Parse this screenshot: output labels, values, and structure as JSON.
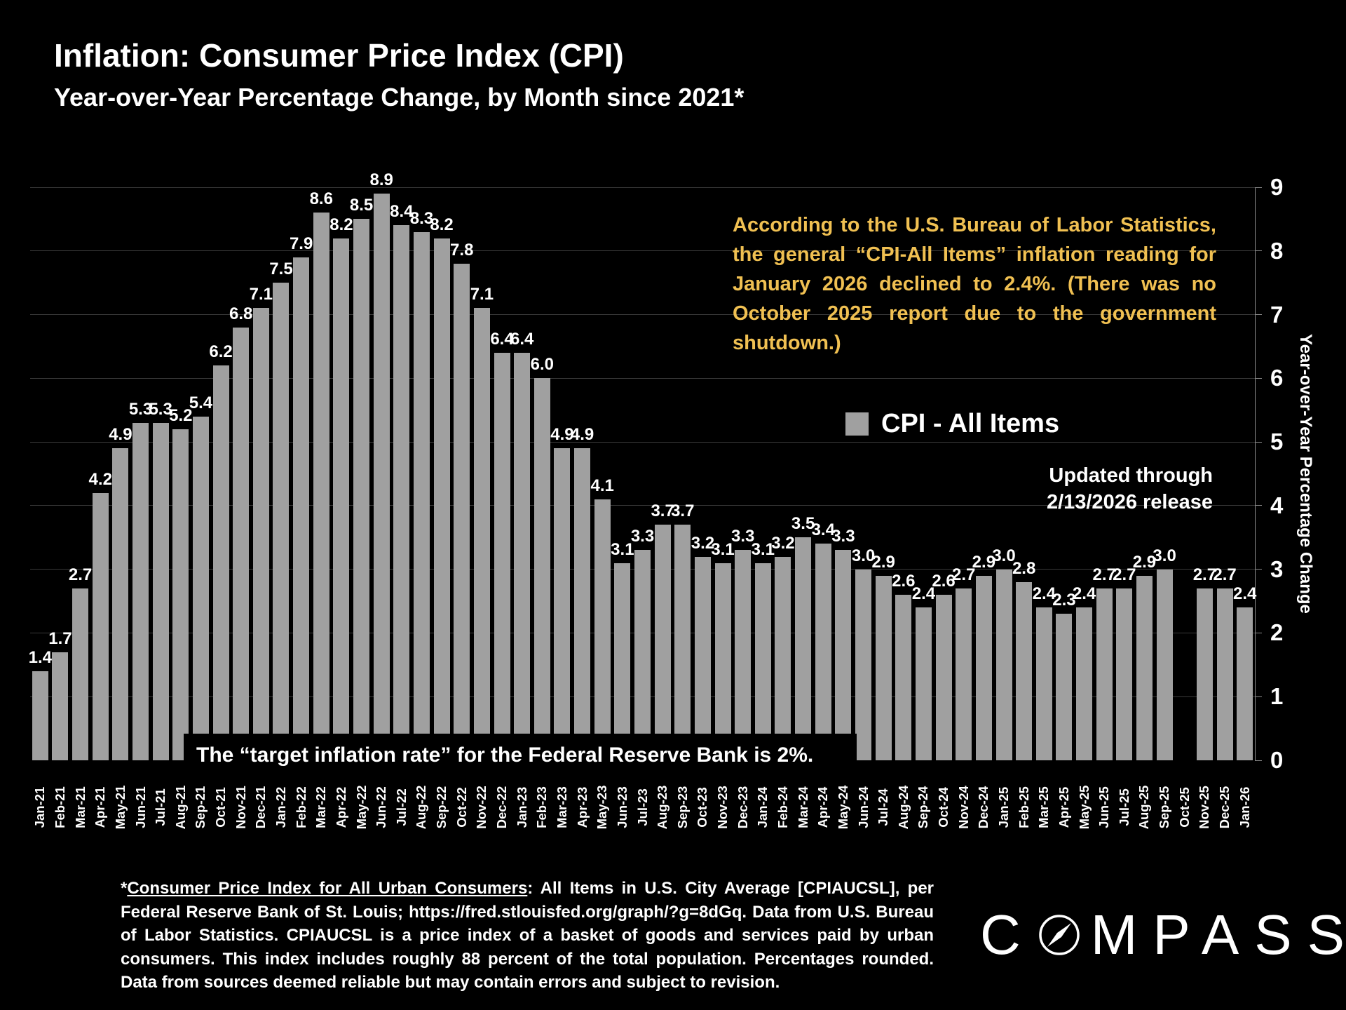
{
  "header": {
    "title": "Inflation: Consumer Price Index (CPI)",
    "subtitle": "Year-over-Year Percentage Change, by Month since 2021*"
  },
  "annotation": {
    "text": "According to the U.S. Bureau of Labor Statistics, the general “CPI-All Items” inflation reading for January 2026 declined to 2.4%. (There was no October 2025 report due to the government shutdown.)"
  },
  "legend": {
    "label": "CPI - All Items"
  },
  "updated": {
    "line1": "Updated through",
    "line2": "2/13/2026 release"
  },
  "target_note": {
    "text": "The “target inflation rate” for the Federal Reserve Bank is 2%."
  },
  "footnote": {
    "asterisk": "*",
    "underlined": "Consumer Price Index for All Urban Consumers",
    "rest": ": All Items in U.S. City Average [CPIAUCSL], per Federal Reserve Bank of St. Louis; https://fred.stlouisfed.org/graph/?g=8dGq. Data from U.S. Bureau of Labor Statistics. CPIAUCSL is a price index of a basket of goods and services paid by urban consumers. This index includes roughly 88 percent of the total population. Percentages rounded. Data from sources deemed reliable but may contain errors and subject to revision."
  },
  "logo": {
    "part1": "C",
    "part2": "MPASS"
  },
  "colors": {
    "background": "#000000",
    "bar": "#A0A0A0",
    "annotation": "#F0C052",
    "text": "#FFFFFF",
    "gridline": "#3A3A3A"
  },
  "chart_data": {
    "type": "bar",
    "title": "Inflation: Consumer Price Index (CPI)",
    "subtitle": "Year-over-Year Percentage Change, by Month since 2021*",
    "xlabel": "",
    "ylabel": "Year-over-Year Percentage Change",
    "ylim": [
      0,
      9
    ],
    "grid": true,
    "legend_position": "center-right",
    "series_name": "CPI - All Items",
    "note": "No bar for Oct-25 (no report due to government shutdown)",
    "categories": [
      "Jan-21",
      "Feb-21",
      "Mar-21",
      "Apr-21",
      "May-21",
      "Jun-21",
      "Jul-21",
      "Aug-21",
      "Sep-21",
      "Oct-21",
      "Nov-21",
      "Dec-21",
      "Jan-22",
      "Feb-22",
      "Mar-22",
      "Apr-22",
      "May-22",
      "Jun-22",
      "Jul-22",
      "Aug-22",
      "Sep-22",
      "Oct-22",
      "Nov-22",
      "Dec-22",
      "Jan-23",
      "Feb-23",
      "Mar-23",
      "Apr-23",
      "May-23",
      "Jun-23",
      "Jul-23",
      "Aug-23",
      "Sep-23",
      "Oct-23",
      "Nov-23",
      "Dec-23",
      "Jan-24",
      "Feb-24",
      "Mar-24",
      "Apr-24",
      "May-24",
      "Jun-24",
      "Jul-24",
      "Aug-24",
      "Sep-24",
      "Oct-24",
      "Nov-24",
      "Dec-24",
      "Jan-25",
      "Feb-25",
      "Mar-25",
      "Apr-25",
      "May-25",
      "Jun-25",
      "Jul-25",
      "Aug-25",
      "Sep-25",
      "Oct-25",
      "Nov-25",
      "Dec-25",
      "Jan-26"
    ],
    "values": [
      1.4,
      1.7,
      2.7,
      4.2,
      4.9,
      5.3,
      5.3,
      5.2,
      5.4,
      6.2,
      6.8,
      7.1,
      7.5,
      7.9,
      8.6,
      8.2,
      8.5,
      8.9,
      8.4,
      8.3,
      8.2,
      7.8,
      7.1,
      6.4,
      6.4,
      6.0,
      4.9,
      4.9,
      4.1,
      3.1,
      3.3,
      3.7,
      3.7,
      3.2,
      3.1,
      3.3,
      3.1,
      3.2,
      3.5,
      3.4,
      3.3,
      3.0,
      2.9,
      2.6,
      2.4,
      2.6,
      2.7,
      2.9,
      3.0,
      2.8,
      2.4,
      2.3,
      2.4,
      2.7,
      2.7,
      2.9,
      3.0,
      null,
      2.7,
      2.7,
      2.4
    ]
  }
}
